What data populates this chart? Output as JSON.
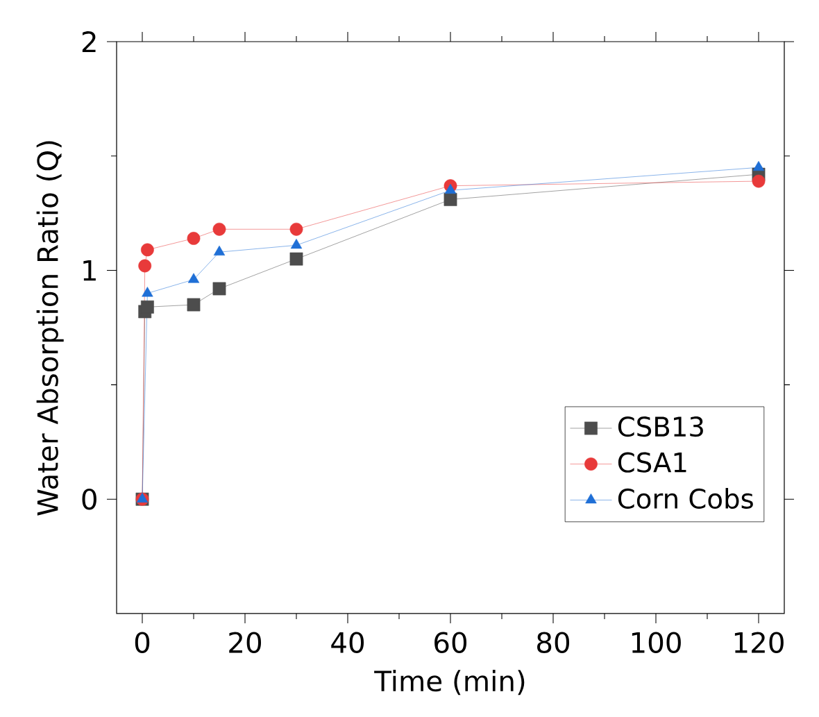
{
  "chart_data": {
    "type": "line",
    "xlabel": "Time (min)",
    "ylabel": "Water Absorption Ratio (Q)",
    "xlim": [
      -5,
      125
    ],
    "ylim": [
      -0.5,
      2
    ],
    "xticks": [
      0,
      20,
      40,
      60,
      80,
      100,
      120
    ],
    "yticks": [
      0,
      1,
      2
    ],
    "legend": "bottom right",
    "grid": false,
    "series": [
      {
        "name": "CSB13",
        "color": "#4d4d4d",
        "marker": "square",
        "x": [
          0,
          0.5,
          1,
          10,
          15,
          30,
          60,
          120
        ],
        "values": [
          0,
          0.82,
          0.84,
          0.85,
          0.92,
          1.05,
          1.31,
          1.42
        ]
      },
      {
        "name": "CSA1",
        "color": "#e83a3a",
        "marker": "circle",
        "x": [
          0,
          0.5,
          1,
          10,
          15,
          30,
          60,
          120
        ],
        "values": [
          0,
          1.02,
          1.09,
          1.14,
          1.18,
          1.18,
          1.37,
          1.39
        ]
      },
      {
        "name": "Corn Cobs",
        "color": "#1f6fd6",
        "marker": "triangle",
        "x": [
          0,
          1,
          10,
          15,
          30,
          60,
          120
        ],
        "values": [
          0,
          0.9,
          0.96,
          1.08,
          1.11,
          1.35,
          1.45
        ]
      }
    ]
  }
}
